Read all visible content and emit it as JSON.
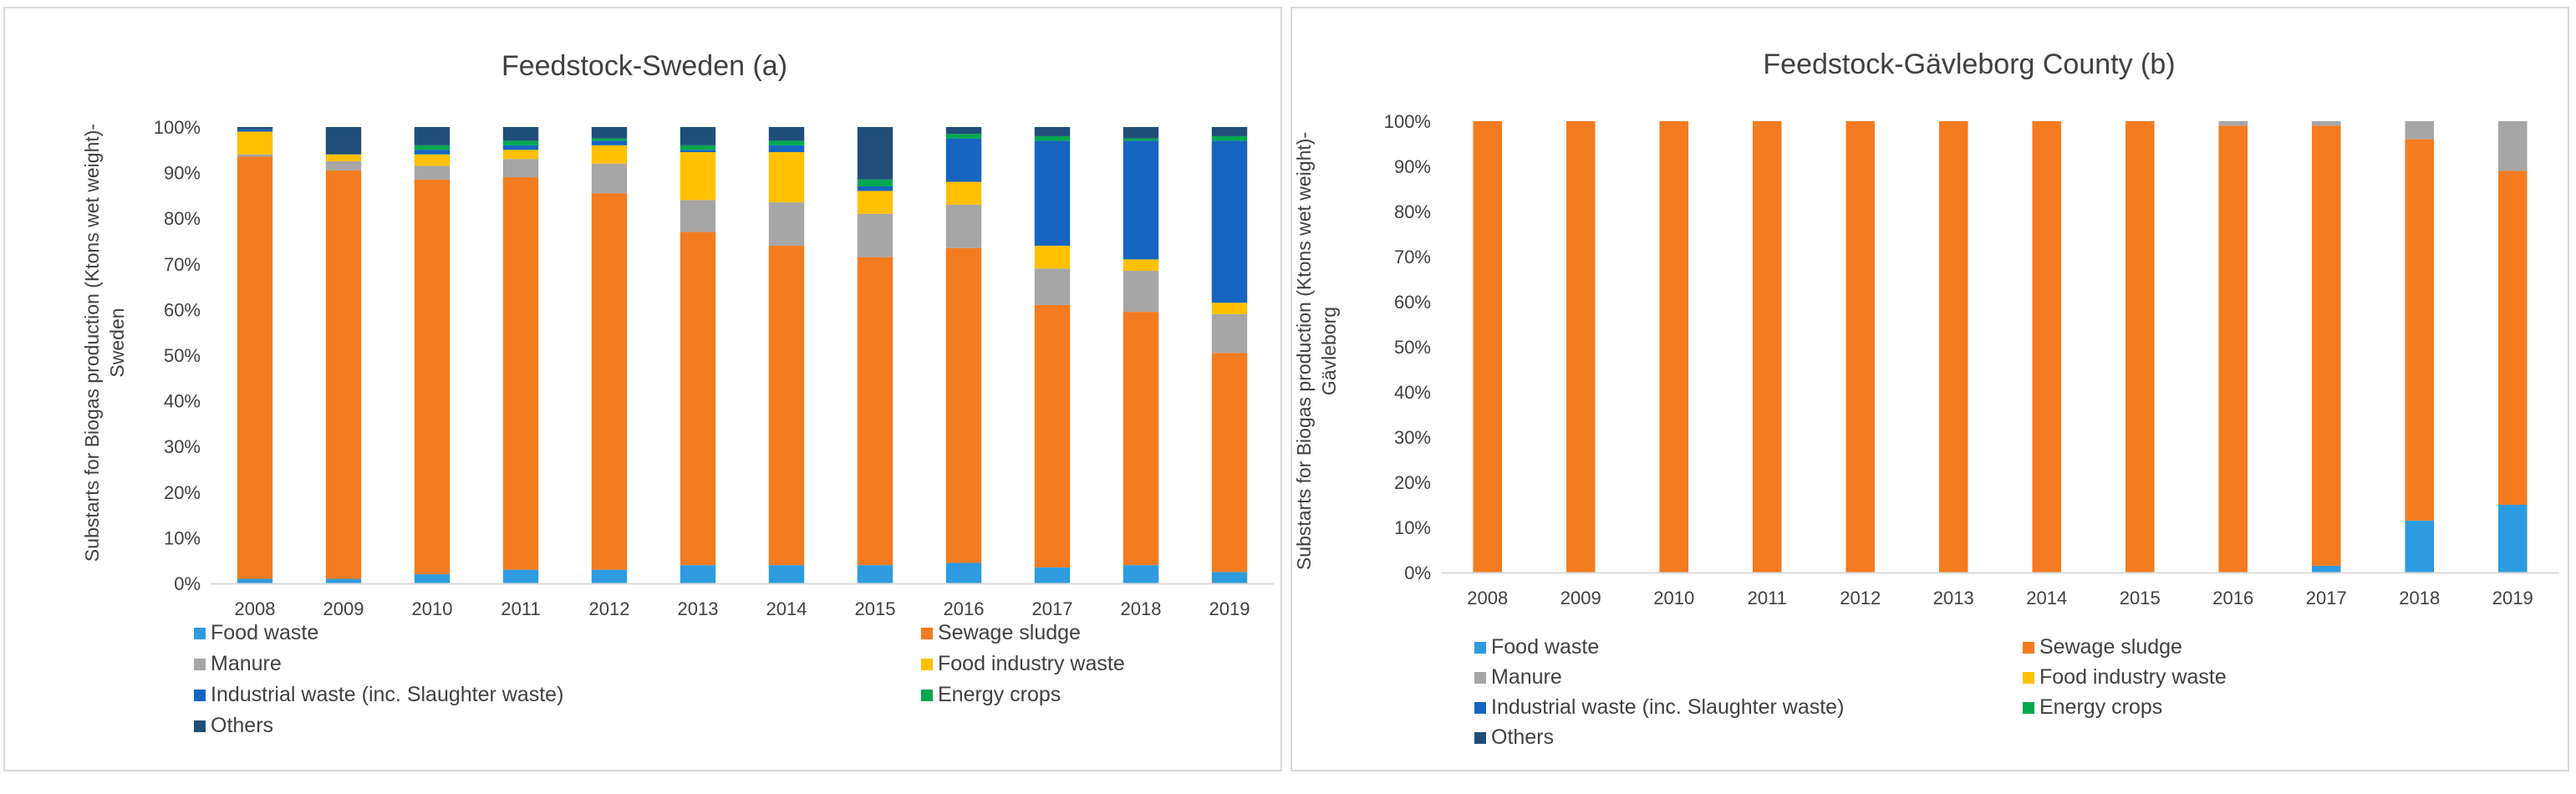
{
  "chart_data": [
    {
      "type": "bar",
      "stacked": true,
      "title": "Feedstock-Sweden (a)",
      "ylabel": "Substarts for Biogas production (Ktons wet weight)-Sweden",
      "ylabel_lines": [
        "Substarts for Biogas production (Ktons wet weight)-",
        "Sweden"
      ],
      "ylim": [
        0,
        100
      ],
      "yticks": [
        "0%",
        "10%",
        "20%",
        "30%",
        "40%",
        "50%",
        "60%",
        "70%",
        "80%",
        "90%",
        "100%"
      ],
      "categories": [
        "2008",
        "2009",
        "2010",
        "2011",
        "2012",
        "2013",
        "2014",
        "2015",
        "2016",
        "2017",
        "2018",
        "2019"
      ],
      "series": [
        {
          "name": "Food waste",
          "color": "#2E9BE0",
          "values": [
            1,
            1,
            2,
            3,
            3,
            4,
            4,
            4,
            4.5,
            3.5,
            4,
            2.5
          ]
        },
        {
          "name": "Sewage sludge",
          "color": "#F47B20",
          "values": [
            92.5,
            89.5,
            86.5,
            86,
            82.5,
            73,
            70,
            67.5,
            69,
            57.5,
            55.5,
            48
          ]
        },
        {
          "name": "Manure",
          "color": "#A6A6A6",
          "values": [
            0.5,
            2,
            3,
            4,
            6.5,
            7,
            9.5,
            9.5,
            9.5,
            8,
            9,
            8.5
          ]
        },
        {
          "name": "Food industry waste",
          "color": "#FFC000",
          "values": [
            5,
            1.5,
            2.5,
            2,
            4,
            10.5,
            11,
            5,
            5,
            5,
            2.5,
            2.5
          ]
        },
        {
          "name": "Industrial waste (inc. Slaughter waste)",
          "color": "#1565C0",
          "values": [
            0.5,
            0,
            1,
            1,
            1,
            0.5,
            1.5,
            1,
            9.5,
            23,
            26,
            35.5
          ]
        },
        {
          "name": "Energy crops",
          "color": "#00A84F",
          "values": [
            0,
            0,
            1,
            1,
            0.5,
            1,
            1,
            1.5,
            1,
            1,
            0.5,
            1
          ]
        },
        {
          "name": "Others",
          "color": "#1F4E79",
          "values": [
            0.5,
            6,
            4,
            3,
            2.5,
            4,
            3,
            11.5,
            1.5,
            2,
            2.5,
            2
          ]
        }
      ]
    },
    {
      "type": "bar",
      "stacked": true,
      "title": "Feedstock-Gävleborg County (b)",
      "ylabel": "Substarts for Biogas production (Ktons wet weight)-Gävleborg",
      "ylabel_lines": [
        "Substarts for Biogas production (Ktons wet weight)-",
        "Gävleborg"
      ],
      "ylim": [
        0,
        100
      ],
      "yticks": [
        "0%",
        "10%",
        "20%",
        "30%",
        "40%",
        "50%",
        "60%",
        "70%",
        "80%",
        "90%",
        "100%"
      ],
      "categories": [
        "2008",
        "2009",
        "2010",
        "2011",
        "2012",
        "2013",
        "2014",
        "2015",
        "2016",
        "2017",
        "2018",
        "2019"
      ],
      "series": [
        {
          "name": "Food waste",
          "color": "#2E9BE0",
          "values": [
            0,
            0,
            0,
            0,
            0,
            0,
            0,
            0,
            0,
            1.5,
            11.5,
            15
          ]
        },
        {
          "name": "Sewage sludge",
          "color": "#F47B20",
          "values": [
            100,
            100,
            100,
            100,
            100,
            100,
            100,
            100,
            99,
            97.5,
            84.5,
            74
          ]
        },
        {
          "name": "Manure",
          "color": "#A6A6A6",
          "values": [
            0,
            0,
            0,
            0,
            0,
            0,
            0,
            0,
            1,
            1,
            4,
            11
          ]
        },
        {
          "name": "Food industry waste",
          "color": "#FFC000",
          "values": [
            0,
            0,
            0,
            0,
            0,
            0,
            0,
            0,
            0,
            0,
            0,
            0
          ]
        },
        {
          "name": "Industrial waste (inc. Slaughter waste)",
          "color": "#1565C0",
          "values": [
            0,
            0,
            0,
            0,
            0,
            0,
            0,
            0,
            0,
            0,
            0,
            0
          ]
        },
        {
          "name": "Energy crops",
          "color": "#00A84F",
          "values": [
            0,
            0,
            0,
            0,
            0,
            0,
            0,
            0,
            0,
            0,
            0,
            0
          ]
        },
        {
          "name": "Others",
          "color": "#1F4E79",
          "values": [
            0,
            0,
            0,
            0,
            0,
            0,
            0,
            0,
            0,
            0,
            0,
            0
          ]
        }
      ]
    }
  ]
}
